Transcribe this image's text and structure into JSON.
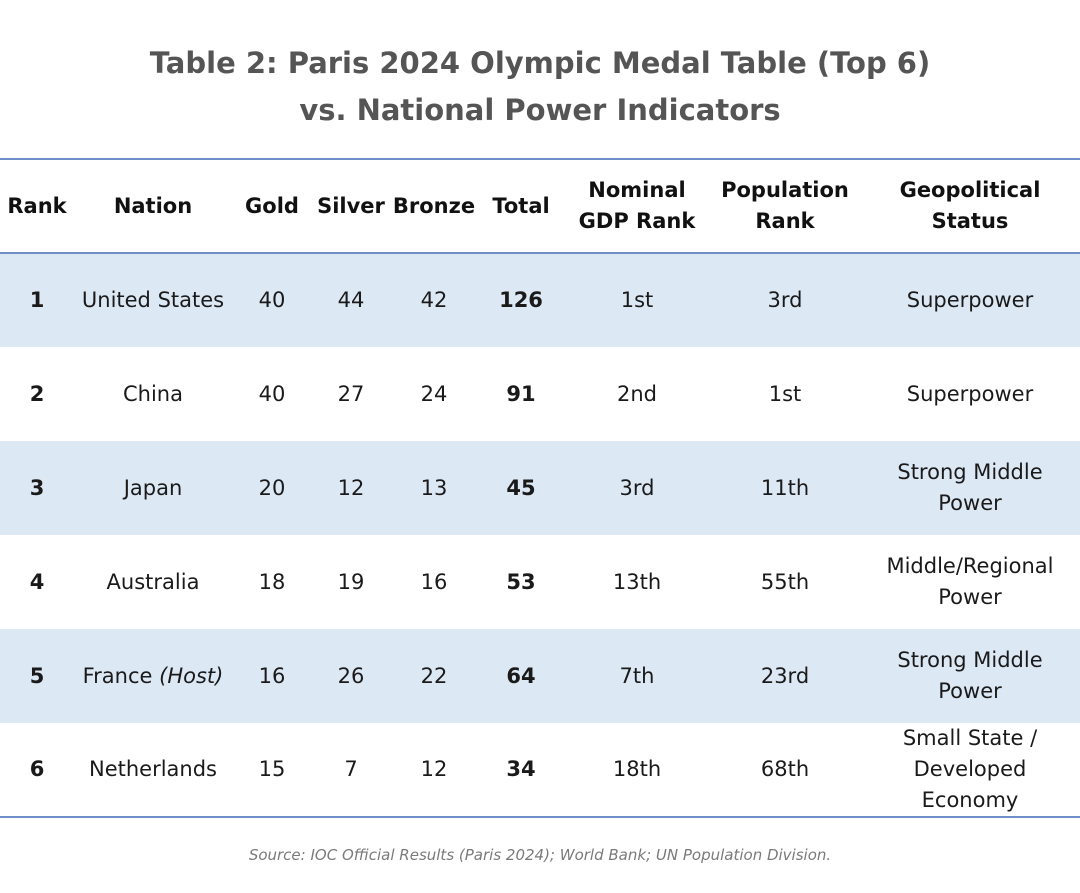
{
  "title": {
    "line1": "Table 2: Paris 2024 Olympic Medal Table (Top 6)",
    "line2": "vs. National Power Indicators"
  },
  "headers": {
    "rank": "Rank",
    "nation": "Nation",
    "gold": "Gold",
    "silver": "Silver",
    "bronze": "Bronze",
    "total": "Total",
    "gdp_line1": "Nominal",
    "gdp_line2": "GDP Rank",
    "pop_line1": "Population",
    "pop_line2": "Rank",
    "geo_line1": "Geopolitical",
    "geo_line2": "Status"
  },
  "rows": [
    {
      "rank": "1",
      "nation": "United States",
      "host": "",
      "gold": "40",
      "silver": "44",
      "bronze": "42",
      "total": "126",
      "gdp": "1st",
      "pop": "3rd",
      "status": [
        "Superpower"
      ]
    },
    {
      "rank": "2",
      "nation": "China",
      "host": "",
      "gold": "40",
      "silver": "27",
      "bronze": "24",
      "total": "91",
      "gdp": "2nd",
      "pop": "1st",
      "status": [
        "Superpower"
      ]
    },
    {
      "rank": "3",
      "nation": "Japan",
      "host": "",
      "gold": "20",
      "silver": "12",
      "bronze": "13",
      "total": "45",
      "gdp": "3rd",
      "pop": "11th",
      "status": [
        "Strong Middle",
        "Power"
      ]
    },
    {
      "rank": "4",
      "nation": "Australia",
      "host": "",
      "gold": "18",
      "silver": "19",
      "bronze": "16",
      "total": "53",
      "gdp": "13th",
      "pop": "55th",
      "status": [
        "Middle/Regional",
        "Power"
      ]
    },
    {
      "rank": "5",
      "nation": "France",
      "host": "(Host)",
      "gold": "16",
      "silver": "26",
      "bronze": "22",
      "total": "64",
      "gdp": "7th",
      "pop": "23rd",
      "status": [
        "Strong Middle",
        "Power"
      ]
    },
    {
      "rank": "6",
      "nation": "Netherlands",
      "host": "",
      "gold": "15",
      "silver": "7",
      "bronze": "12",
      "total": "34",
      "gdp": "18th",
      "pop": "68th",
      "status": [
        "Small State /",
        "Developed",
        "Economy"
      ]
    }
  ],
  "source": "Source: IOC Official Results (Paris 2024); World Bank; UN Population Division."
}
